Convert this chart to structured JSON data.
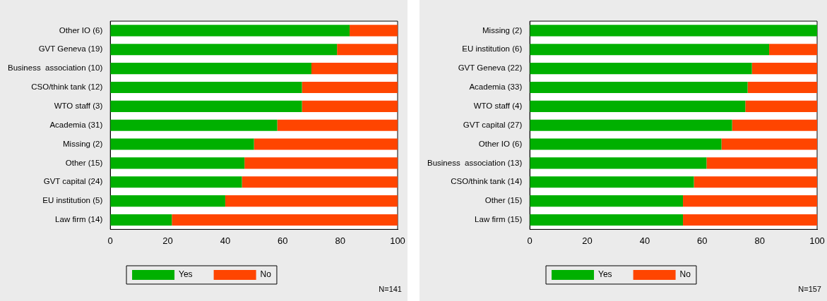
{
  "chart_data": [
    {
      "type": "bar",
      "orientation": "horizontal",
      "stacked": true,
      "categories": [
        "Other IO (6)",
        "GVT Geneva (19)",
        "Business  association (10)",
        "CSO/think tank (12)",
        "WTO staff (3)",
        "Academia (31)",
        "Missing (2)",
        "Other (15)",
        "GVT capital (24)",
        "EU institution (5)",
        "Law firm (14)"
      ],
      "series": [
        {
          "name": "Yes",
          "color": "#00b000",
          "values": [
            83.3,
            78.9,
            70,
            66.7,
            66.7,
            58.1,
            50,
            46.7,
            45.8,
            40,
            21.4
          ]
        },
        {
          "name": "No",
          "color": "#ff4500",
          "values": [
            16.7,
            21.1,
            30,
            33.3,
            33.3,
            41.9,
            50,
            53.3,
            54.2,
            60,
            78.6
          ]
        }
      ],
      "xlim": [
        0,
        100
      ],
      "xticks": [
        0,
        20,
        40,
        60,
        80,
        100
      ],
      "grid": false,
      "legend": "bottom",
      "annotations": [
        "N=141"
      ]
    },
    {
      "type": "bar",
      "orientation": "horizontal",
      "stacked": true,
      "categories": [
        "Missing (2)",
        "EU institution (6)",
        "GVT Geneva (22)",
        "Academia (33)",
        "WTO staff (4)",
        "GVT capital (27)",
        "Other IO (6)",
        "Business  association (13)",
        "CSO/think tank (14)",
        "Other (15)",
        "Law firm (15)"
      ],
      "series": [
        {
          "name": "Yes",
          "color": "#00b000",
          "values": [
            100,
            83.3,
            77.3,
            75.8,
            75,
            70.4,
            66.7,
            61.5,
            57.1,
            53.3,
            53.3
          ]
        },
        {
          "name": "No",
          "color": "#ff4500",
          "values": [
            0,
            16.7,
            22.7,
            24.2,
            25,
            29.6,
            33.3,
            38.5,
            42.9,
            46.7,
            46.7
          ]
        }
      ],
      "xlim": [
        0,
        100
      ],
      "xticks": [
        0,
        20,
        40,
        60,
        80,
        100
      ],
      "grid": false,
      "legend": "bottom",
      "annotations": [
        "N=157"
      ]
    }
  ]
}
